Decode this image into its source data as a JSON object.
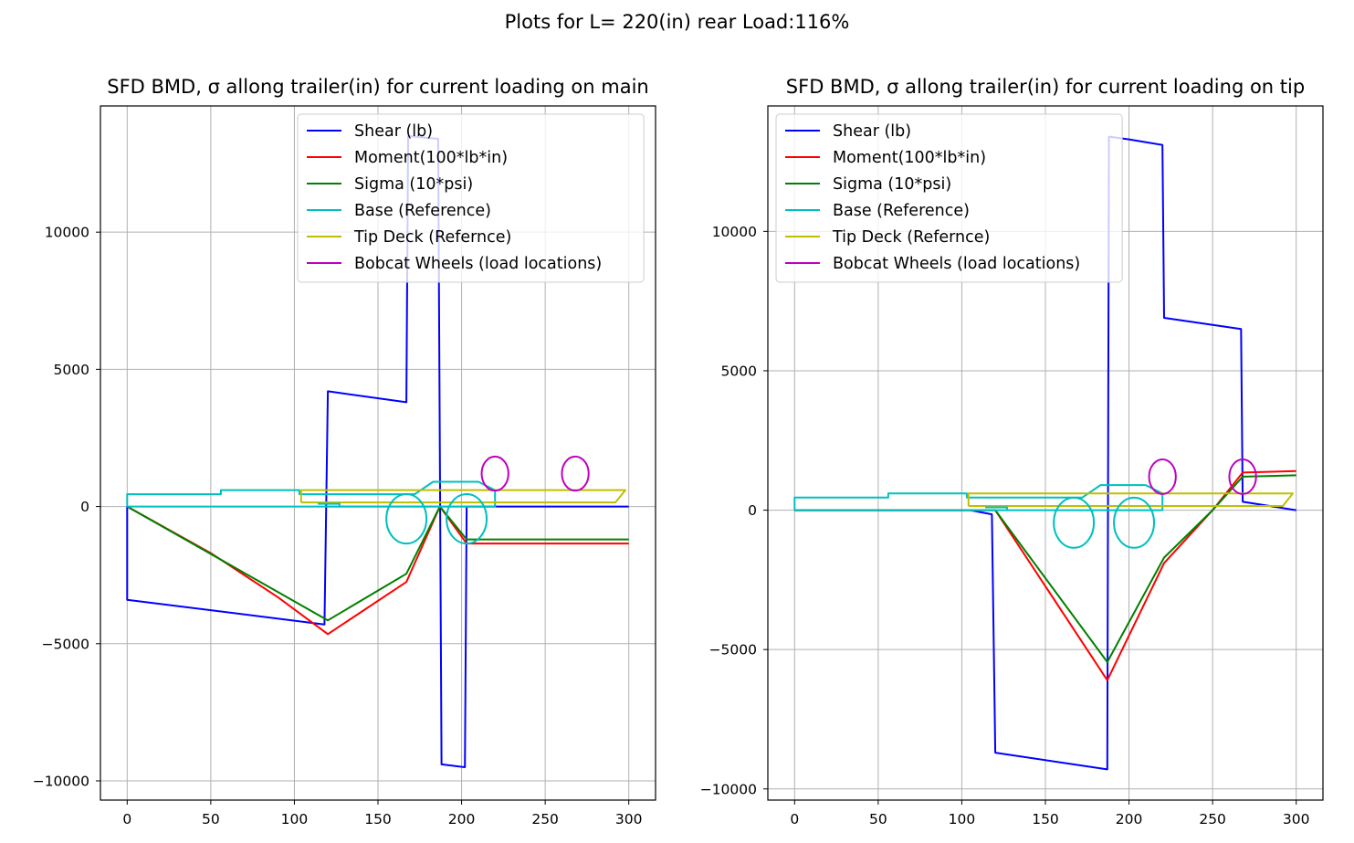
{
  "figure_title": "Plots for L= 220(in) rear Load:116%",
  "colors": {
    "Shear (lb)": "#0000ff",
    "Moment(100*lb*in)": "#ff0000",
    "Sigma (10*psi)": "#008000",
    "Base (Reference)": "#00bfbf",
    "Tip Deck (Refernce)": "#bfbf00",
    "Bobcat Wheels (load locations)": "#bf00bf"
  },
  "chart_data": [
    {
      "type": "line",
      "title": "SFD BMD, σ allong trailer(in) for current loading on main",
      "xlabel": "",
      "ylabel": "",
      "xlim": [
        -16,
        316
      ],
      "ylim": [
        -10700,
        14600
      ],
      "xticks": [
        "0",
        "50",
        "100",
        "150",
        "200",
        "250",
        "300"
      ],
      "yticks": [
        "−10000",
        "−5000",
        "0",
        "5000",
        "10000"
      ],
      "grid": true,
      "legend_position": "upper right",
      "series": [
        {
          "name": "Shear (lb)",
          "points": [
            [
              0,
              0
            ],
            [
              0,
              -3400
            ],
            [
              118,
              -4300
            ],
            [
              120,
              4200
            ],
            [
              167,
              3800
            ],
            [
              168,
              13500
            ],
            [
              186,
              13400
            ],
            [
              188,
              -9400
            ],
            [
              202,
              -9500
            ],
            [
              203,
              0
            ],
            [
              300,
              0
            ]
          ]
        },
        {
          "name": "Moment(100*lb*in)",
          "points": [
            [
              0,
              0
            ],
            [
              50,
              -1700
            ],
            [
              90,
              -3300
            ],
            [
              120,
              -4650
            ],
            [
              167,
              -2750
            ],
            [
              187,
              0
            ],
            [
              203,
              -1350
            ],
            [
              300,
              -1350
            ]
          ]
        },
        {
          "name": "Sigma (10*psi)",
          "points": [
            [
              0,
              0
            ],
            [
              120,
              -4150
            ],
            [
              167,
              -2450
            ],
            [
              187,
              0
            ],
            [
              203,
              -1200
            ],
            [
              300,
              -1200
            ]
          ]
        },
        {
          "name": "Base (Reference)",
          "points": [
            [
              0,
              0
            ],
            [
              0,
              450
            ],
            [
              56,
              450
            ],
            [
              56,
              600
            ],
            [
              103,
              600
            ],
            [
              103,
              450
            ],
            [
              172,
              450
            ],
            [
              183,
              900
            ],
            [
              210,
              900
            ],
            [
              220,
              600
            ],
            [
              220,
              0
            ],
            [
              0,
              0
            ]
          ]
        },
        {
          "name": "Tip Deck (Refernce)",
          "points": [
            [
              104,
              150
            ],
            [
              104,
              600
            ],
            [
              298,
              600
            ],
            [
              292,
              150
            ],
            [
              104,
              150
            ]
          ]
        },
        {
          "name": "Bobcat Wheels (load locations)",
          "points": []
        }
      ],
      "extra_marks": [
        {
          "series": "Base (Reference)",
          "points": [
            [
              114,
              100
            ],
            [
              127,
              100
            ],
            [
              127,
              0
            ]
          ]
        },
        {
          "series": "Base (Reference)",
          "points": [
            [
              120,
              0
            ],
            [
              220,
              0
            ]
          ]
        }
      ],
      "ellipses": [
        {
          "series": "Base (Reference)",
          "cx": 167,
          "cy": -450,
          "rx": 12,
          "ry": 900
        },
        {
          "series": "Base (Reference)",
          "cx": 203,
          "cy": -450,
          "rx": 12,
          "ry": 900
        },
        {
          "series": "Bobcat Wheels (load locations)",
          "cx": 220,
          "cy": 1200,
          "rx": 8,
          "ry": 620
        },
        {
          "series": "Bobcat Wheels (load locations)",
          "cx": 268,
          "cy": 1200,
          "rx": 8,
          "ry": 620
        }
      ]
    },
    {
      "type": "line",
      "title": "SFD BMD, σ allong trailer(in) for current loading on tip",
      "xlabel": "",
      "ylabel": "",
      "xlim": [
        -16,
        316
      ],
      "ylim": [
        -10400,
        14500
      ],
      "xticks": [
        "0",
        "50",
        "100",
        "150",
        "200",
        "250",
        "300"
      ],
      "yticks": [
        "−10000",
        "−5000",
        "0",
        "5000",
        "10000"
      ],
      "grid": true,
      "legend_position": "upper left",
      "series": [
        {
          "name": "Shear (lb)",
          "points": [
            [
              0,
              0
            ],
            [
              105,
              0
            ],
            [
              118,
              -150
            ],
            [
              120,
              -8700
            ],
            [
              187,
              -9300
            ],
            [
              188,
              13400
            ],
            [
              200,
              13300
            ],
            [
              220,
              13100
            ],
            [
              221,
              6900
            ],
            [
              267,
              6500
            ],
            [
              268,
              300
            ],
            [
              300,
              0
            ]
          ]
        },
        {
          "name": "Moment(100*lb*in)",
          "points": [
            [
              0,
              0
            ],
            [
              120,
              0
            ],
            [
              187,
              -6100
            ],
            [
              221,
              -1900
            ],
            [
              250,
              0
            ],
            [
              268,
              1350
            ],
            [
              300,
              1400
            ]
          ]
        },
        {
          "name": "Sigma (10*psi)",
          "points": [
            [
              0,
              0
            ],
            [
              120,
              0
            ],
            [
              187,
              -5450
            ],
            [
              221,
              -1700
            ],
            [
              250,
              0
            ],
            [
              268,
              1200
            ],
            [
              300,
              1250
            ]
          ]
        },
        {
          "name": "Base (Reference)",
          "points": [
            [
              0,
              0
            ],
            [
              0,
              450
            ],
            [
              56,
              450
            ],
            [
              56,
              600
            ],
            [
              103,
              600
            ],
            [
              103,
              450
            ],
            [
              172,
              450
            ],
            [
              183,
              900
            ],
            [
              210,
              900
            ],
            [
              220,
              600
            ],
            [
              220,
              0
            ],
            [
              0,
              0
            ]
          ]
        },
        {
          "name": "Tip Deck (Refernce)",
          "points": [
            [
              104,
              150
            ],
            [
              104,
              600
            ],
            [
              298,
              600
            ],
            [
              292,
              150
            ],
            [
              104,
              150
            ]
          ]
        },
        {
          "name": "Bobcat Wheels (load locations)",
          "points": []
        }
      ],
      "extra_marks": [
        {
          "series": "Base (Reference)",
          "points": [
            [
              114,
              100
            ],
            [
              127,
              100
            ],
            [
              127,
              0
            ]
          ]
        }
      ],
      "ellipses": [
        {
          "series": "Base (Reference)",
          "cx": 167,
          "cy": -450,
          "rx": 12,
          "ry": 900
        },
        {
          "series": "Base (Reference)",
          "cx": 203,
          "cy": -450,
          "rx": 12,
          "ry": 900
        },
        {
          "series": "Bobcat Wheels (load locations)",
          "cx": 220,
          "cy": 1200,
          "rx": 8,
          "ry": 620
        },
        {
          "series": "Bobcat Wheels (load locations)",
          "cx": 268,
          "cy": 1200,
          "rx": 8,
          "ry": 620
        }
      ]
    }
  ]
}
